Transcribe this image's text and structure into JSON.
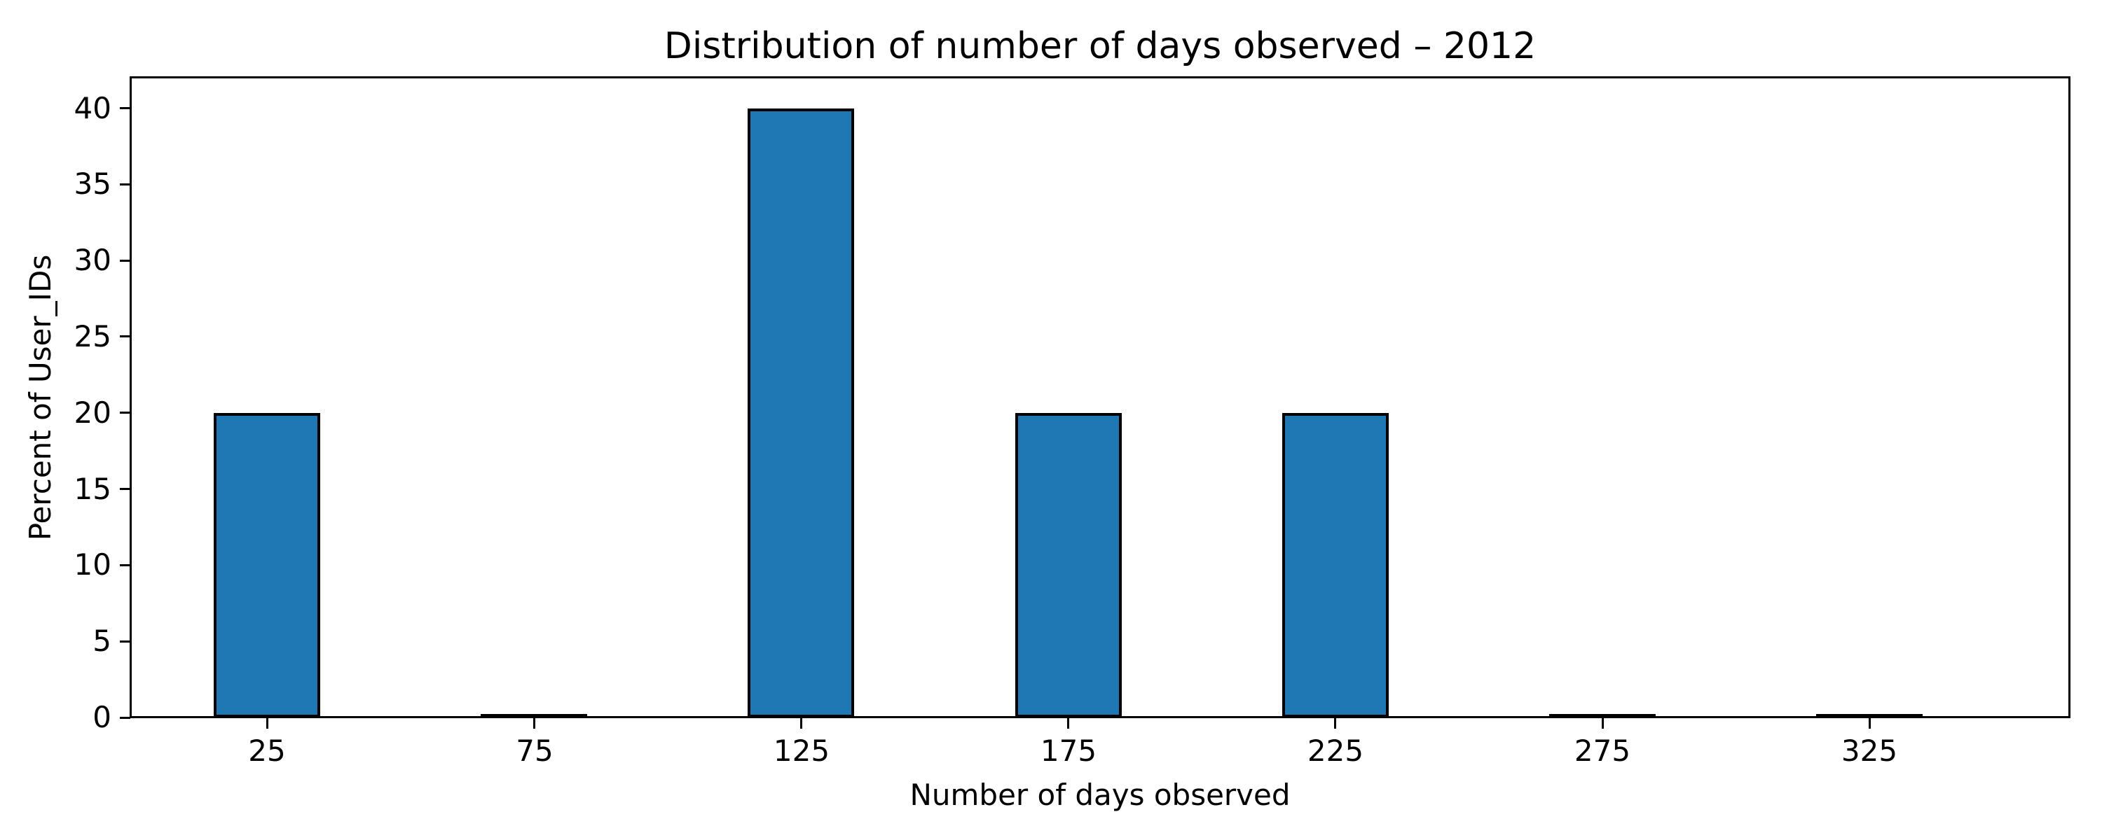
{
  "chart_data": {
    "type": "bar",
    "title": "Distribution of number of days observed – 2012",
    "xlabel": "Number of days observed",
    "ylabel": "Percent of User_IDs",
    "categories": [
      25,
      75,
      125,
      175,
      225,
      275,
      325
    ],
    "values": [
      20,
      0.12,
      40,
      20,
      20,
      0.12,
      0.12
    ],
    "xticks": [
      "25",
      "75",
      "125",
      "175",
      "225",
      "275",
      "325"
    ],
    "yticks": [
      "0",
      "5",
      "10",
      "15",
      "20",
      "25",
      "30",
      "35",
      "40"
    ],
    "ytick_values": [
      0,
      5,
      10,
      15,
      20,
      25,
      30,
      35,
      40
    ],
    "xlim": [
      -0.5,
      362.5
    ],
    "ylim": [
      0,
      42
    ],
    "bar_width_units": 20,
    "bar_color": "#1f77b4",
    "bar_edge_color": "#000000",
    "axis_color": "#000000",
    "background_color": "#ffffff",
    "grid": false,
    "legend": null
  }
}
